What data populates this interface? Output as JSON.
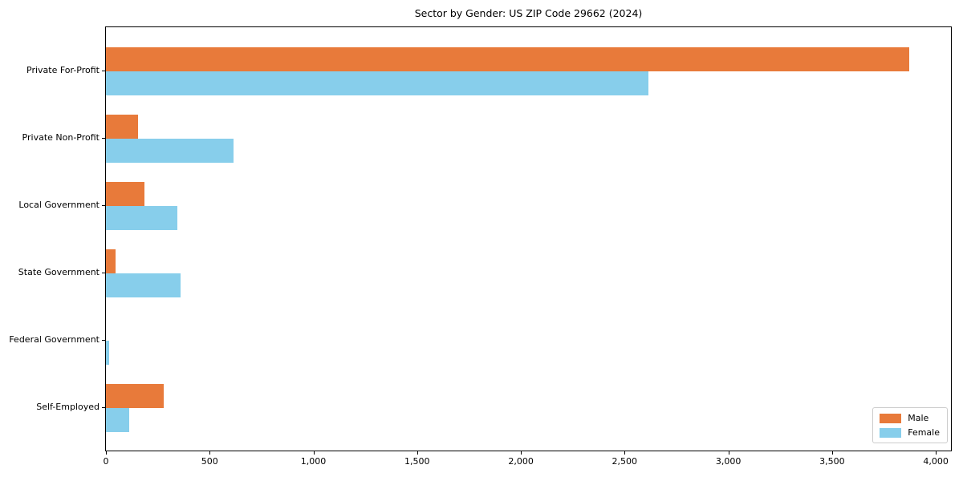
{
  "chart_data": {
    "type": "bar",
    "orientation": "horizontal",
    "title": "Sector by Gender: US ZIP Code 29662 (2024)",
    "xlabel": "",
    "ylabel": "",
    "categories": [
      "Private For-Profit",
      "Private Non-Profit",
      "Local Government",
      "State Government",
      "Federal Government",
      "Self-Employed"
    ],
    "series": [
      {
        "name": "Male",
        "color": "#e87a3a",
        "values": [
          3872,
          155,
          187,
          46,
          0,
          280
        ]
      },
      {
        "name": "Female",
        "color": "#87ceeb",
        "values": [
          2615,
          616,
          345,
          361,
          17,
          111
        ]
      }
    ],
    "xlim": [
      0,
      4073
    ],
    "xticks": [
      0,
      500,
      1000,
      1500,
      2000,
      2500,
      3000,
      3500,
      4000
    ],
    "xtick_labels": [
      "0",
      "500",
      "1,000",
      "1,500",
      "2,000",
      "2,500",
      "3,000",
      "3,500",
      "4,000"
    ],
    "legend_position": "lower right",
    "grid": false,
    "spine_color": "#000000",
    "legend_border_color": "#cccccc"
  }
}
